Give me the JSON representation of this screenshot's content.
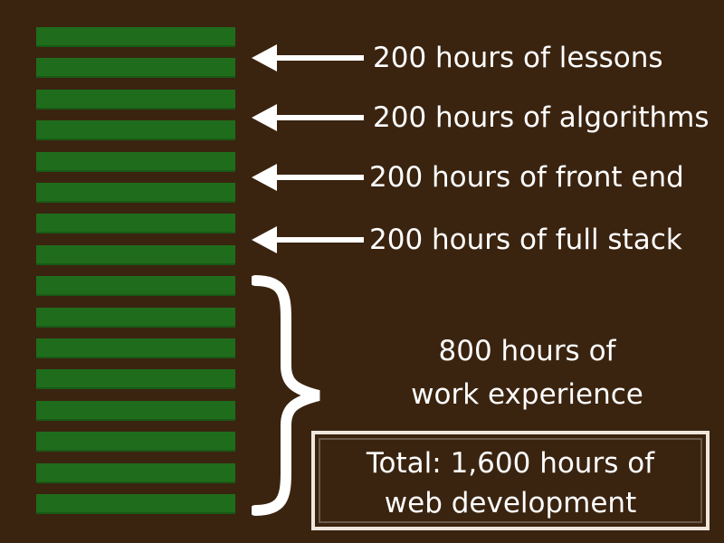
{
  "colors": {
    "background": "#3a2410",
    "bar": "#1f6d1c",
    "text": "#ffffff",
    "box_border": "#efe7dd"
  },
  "bars": {
    "count": 16
  },
  "arrow_labels": [
    "200 hours of lessons",
    "200 hours of algorithms",
    "200 hours of front end",
    "200 hours of full stack"
  ],
  "work": {
    "line1": "800 hours of",
    "line2": "work experience"
  },
  "total": {
    "line1": "Total: 1,600 hours of",
    "line2": "web development"
  }
}
